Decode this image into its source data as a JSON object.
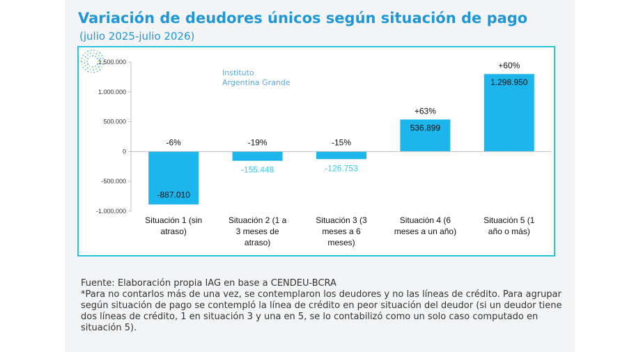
{
  "header": {
    "title": "Variación de deudores únicos según situación de pago",
    "subtitle": "(julio 2025-julio 2026)"
  },
  "logo": {
    "line1": "Instituto",
    "line2": "Argentina Grande",
    "icon": "dotted-circle-logo-icon"
  },
  "colors": {
    "bar": "#1cb5ec",
    "title": "#1f97d4",
    "frame": "#26c6d9",
    "negative_label": "#36c9e6"
  },
  "chart_data": {
    "type": "bar",
    "categories": [
      [
        "Situación 1 (sin",
        "atraso)"
      ],
      [
        "Situación 2 (1 a",
        "3 meses de",
        "atraso)"
      ],
      [
        "Situación 3 (3",
        "meses a 6",
        "meses)"
      ],
      [
        "Situación 4 (6",
        "meses a un año)"
      ],
      [
        "Situación 5 (1",
        "año o más)"
      ]
    ],
    "values": [
      -887010,
      -155448,
      -126753,
      536899,
      1298950
    ],
    "value_labels": [
      "-887.010",
      "-155.448",
      "-126.753",
      "536.899",
      "1.298.950"
    ],
    "pct_labels": [
      "-6%",
      "-19%",
      "-15%",
      "+63%",
      "+60%"
    ],
    "ylim": [
      -1000000,
      1500000
    ],
    "yticks": [
      1500000,
      1000000,
      500000,
      0,
      -500000,
      -1000000
    ],
    "ytick_labels": [
      "1.500.000",
      "1.000.000",
      "500.000",
      "0",
      "-500.000",
      "-1.000.000"
    ],
    "grid": false,
    "legend": "none"
  },
  "footer": {
    "source": "Fuente: Elaboración propia IAG en base a  CENDEU-BCRA",
    "note": "*Para no contarlos más de una vez, se contemplaron los deudores y no las líneas de crédito. Para agrupar según situación de pago se contempló la línea de crédito en peor situación del deudor (si un deudor tiene dos líneas de crédito, 1 en situación 3 y una en 5, se lo contabilizó como un solo caso computado en situación 5)."
  }
}
